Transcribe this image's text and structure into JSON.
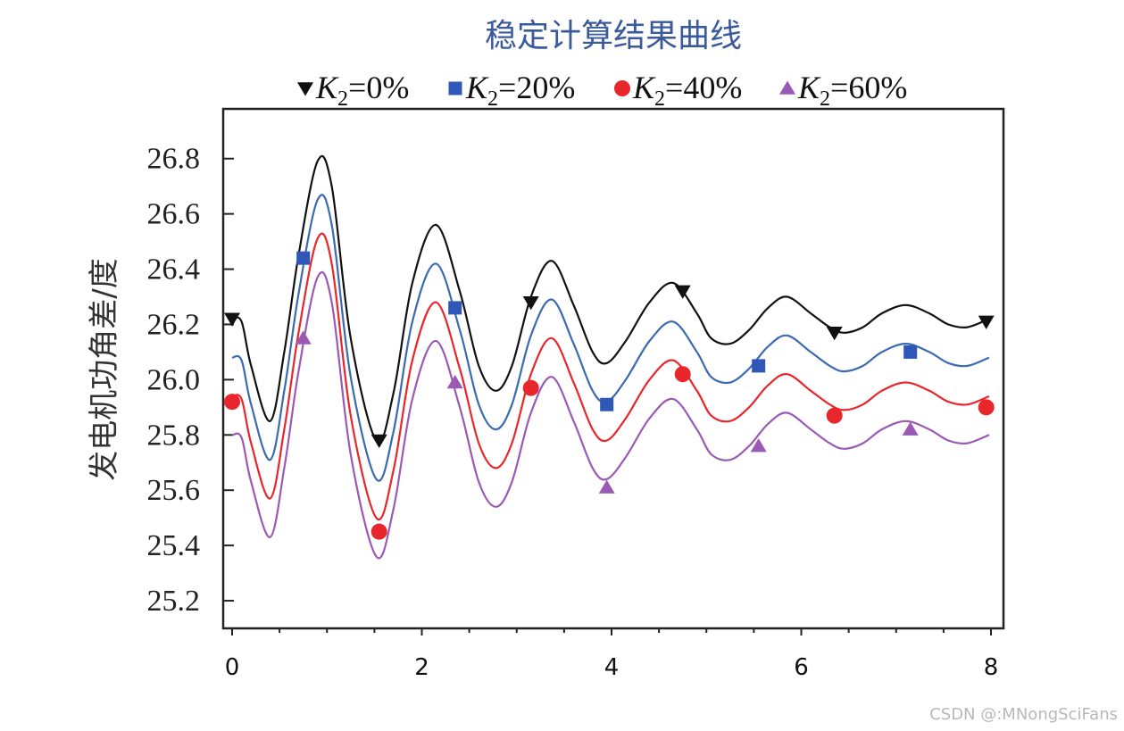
{
  "watermark": "CSDN @:MNongSciFans",
  "chart_data": {
    "type": "line",
    "title": "稳定计算结果曲线",
    "xlabel": "",
    "ylabel": "发电机功角差/度",
    "xlim": [
      0,
      8
    ],
    "ylim": [
      25.1,
      26.98
    ],
    "x_ticks": [
      0,
      2,
      4,
      6,
      8
    ],
    "x_tick_labels": [
      "0",
      "2",
      "4",
      "6",
      "8"
    ],
    "y_ticks": [
      25.2,
      25.4,
      25.6,
      25.8,
      26.0,
      26.2,
      26.4,
      26.6,
      26.8
    ],
    "y_tick_labels": [
      "25.2",
      "25.4",
      "25.6",
      "25.8",
      "26.0",
      "26.2",
      "26.4",
      "26.6",
      "26.8"
    ],
    "grid": false,
    "legend_position": "top",
    "legend": [
      {
        "series": 0,
        "k": "K",
        "sub": "2",
        "text": "=0%"
      },
      {
        "series": 1,
        "k": "K",
        "sub": "2",
        "text": "=20%"
      },
      {
        "series": 2,
        "k": "K",
        "sub": "2",
        "text": "=40%"
      },
      {
        "series": 3,
        "k": "K",
        "sub": "2",
        "text": "=60%"
      }
    ],
    "series": [
      {
        "color": "#111111",
        "marker": "triangle-down",
        "marker_color": "#111111",
        "offset": 0.0,
        "points": [
          [
            0.0,
            26.22
          ],
          [
            0.1,
            26.21
          ],
          [
            0.2,
            26.05
          ],
          [
            0.4,
            25.85
          ],
          [
            0.55,
            26.1
          ],
          [
            0.7,
            26.45
          ],
          [
            0.9,
            26.79
          ],
          [
            1.05,
            26.7
          ],
          [
            1.25,
            26.15
          ],
          [
            1.52,
            25.78
          ],
          [
            1.7,
            25.95
          ],
          [
            1.9,
            26.35
          ],
          [
            2.15,
            26.56
          ],
          [
            2.4,
            26.32
          ],
          [
            2.6,
            26.05
          ],
          [
            2.78,
            25.96
          ],
          [
            2.95,
            26.05
          ],
          [
            3.15,
            26.3
          ],
          [
            3.37,
            26.43
          ],
          [
            3.6,
            26.27
          ],
          [
            3.8,
            26.1
          ],
          [
            3.95,
            26.06
          ],
          [
            4.15,
            26.14
          ],
          [
            4.4,
            26.28
          ],
          [
            4.65,
            26.35
          ],
          [
            4.9,
            26.24
          ],
          [
            5.05,
            26.15
          ],
          [
            5.25,
            26.13
          ],
          [
            5.45,
            26.18
          ],
          [
            5.65,
            26.26
          ],
          [
            5.85,
            26.3
          ],
          [
            6.1,
            26.24
          ],
          [
            6.3,
            26.19
          ],
          [
            6.45,
            26.17
          ],
          [
            6.65,
            26.19
          ],
          [
            6.85,
            26.24
          ],
          [
            7.1,
            26.27
          ],
          [
            7.35,
            26.24
          ],
          [
            7.55,
            26.2
          ],
          [
            7.75,
            26.19
          ],
          [
            7.98,
            26.22
          ]
        ],
        "markers": [
          [
            0.0,
            26.22
          ],
          [
            1.55,
            25.78
          ],
          [
            3.15,
            26.28
          ],
          [
            4.75,
            26.32
          ],
          [
            6.35,
            26.17
          ],
          [
            7.95,
            26.21
          ]
        ]
      },
      {
        "color": "#3a6ab0",
        "marker": "square",
        "marker_color": "#2f57b8",
        "offset": -0.14,
        "markers": [
          [
            0.75,
            26.44
          ],
          [
            2.35,
            26.26
          ],
          [
            3.95,
            25.91
          ],
          [
            5.55,
            26.05
          ],
          [
            7.15,
            26.1
          ]
        ]
      },
      {
        "color": "#e8262b",
        "marker": "circle",
        "marker_color": "#e8262b",
        "offset": -0.28,
        "markers": [
          [
            0.0,
            25.92
          ],
          [
            1.55,
            25.45
          ],
          [
            3.15,
            25.97
          ],
          [
            4.75,
            26.02
          ],
          [
            6.35,
            25.87
          ],
          [
            7.95,
            25.9
          ]
        ]
      },
      {
        "color": "#9b59b6",
        "marker": "triangle-up",
        "marker_color": "#9b59b6",
        "offset": -0.42,
        "markers": [
          [
            0.75,
            26.15
          ],
          [
            2.35,
            25.99
          ],
          [
            3.95,
            25.61
          ],
          [
            5.55,
            25.76
          ],
          [
            7.15,
            25.82
          ]
        ]
      }
    ]
  }
}
